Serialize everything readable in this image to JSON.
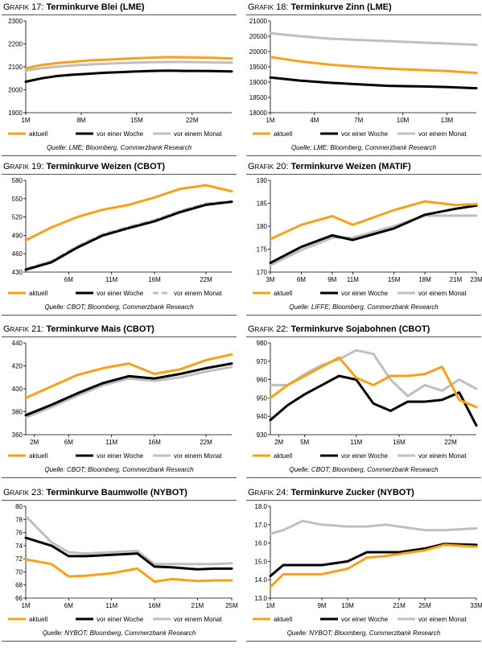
{
  "legend_labels": [
    "aktuell",
    "vor einer Woche",
    "vor einem Monat"
  ],
  "colors": {
    "aktuell": "#f7a11a",
    "vor_einer_woche": "#000000",
    "vor_einem_monat": "#bfbfbf"
  },
  "chart_data": [
    {
      "type": "line",
      "title_prefix": "Grafik 17:",
      "title": "Terminkurve Blei (LME)",
      "source": "Quelle: LME; Bloomberg, Commerzbank Research",
      "ylim": [
        1900,
        2300
      ],
      "yticks": [
        1900,
        2000,
        2100,
        2200,
        2300
      ],
      "xlim": [
        1,
        27
      ],
      "xticks": [
        1,
        8,
        15,
        22
      ],
      "xticklabels": [
        "1M",
        "8M",
        "15M",
        "22M"
      ],
      "series": [
        {
          "name": "aktuell",
          "x": [
            1,
            3,
            5,
            7,
            9,
            11,
            13,
            15,
            17,
            19,
            21,
            23,
            25,
            27
          ],
          "values": [
            2093,
            2108,
            2116,
            2122,
            2128,
            2131,
            2134,
            2138,
            2140,
            2142,
            2141,
            2140,
            2139,
            2136
          ]
        },
        {
          "name": "vor einer Woche",
          "x": [
            1,
            3,
            5,
            7,
            9,
            11,
            13,
            15,
            17,
            19,
            21,
            23,
            25,
            27
          ],
          "values": [
            2035,
            2050,
            2060,
            2066,
            2070,
            2074,
            2077,
            2080,
            2082,
            2083,
            2082,
            2082,
            2081,
            2080
          ]
        },
        {
          "name": "vor einem Monat",
          "x": [
            1,
            3,
            5,
            7,
            9,
            11,
            13,
            15,
            17,
            19,
            21,
            23,
            25,
            27
          ],
          "values": [
            2083,
            2094,
            2101,
            2106,
            2110,
            2113,
            2116,
            2118,
            2120,
            2121,
            2121,
            2120,
            2119,
            2118
          ]
        }
      ]
    },
    {
      "type": "line",
      "title_prefix": "Grafik 18:",
      "title": "Terminkurve Zinn (LME)",
      "source": "Quelle: LME; Bloomberg, Commerzbank Research",
      "ylim": [
        18000,
        21000
      ],
      "yticks": [
        18000,
        18500,
        19000,
        19500,
        20000,
        20500,
        21000
      ],
      "xlim": [
        1,
        15
      ],
      "xticks": [
        1,
        4,
        7,
        10,
        13
      ],
      "xticklabels": [
        "1M",
        "4M",
        "7M",
        "10M",
        "13M"
      ],
      "series": [
        {
          "name": "aktuell",
          "x": [
            1,
            3,
            5,
            7,
            9,
            11,
            13,
            15
          ],
          "values": [
            19820,
            19680,
            19570,
            19500,
            19440,
            19400,
            19360,
            19300
          ]
        },
        {
          "name": "vor einer Woche",
          "x": [
            1,
            3,
            5,
            7,
            9,
            11,
            13,
            15
          ],
          "values": [
            19150,
            19050,
            18980,
            18930,
            18880,
            18860,
            18840,
            18800
          ]
        },
        {
          "name": "vor einem Monat",
          "x": [
            1,
            3,
            5,
            7,
            9,
            11,
            13,
            15
          ],
          "values": [
            20600,
            20500,
            20420,
            20380,
            20340,
            20300,
            20260,
            20220
          ]
        }
      ]
    },
    {
      "type": "line",
      "title_prefix": "Grafik 19:",
      "title": "Terminkurve Weizen (CBOT)",
      "source": "Quelle: CBOT; Bloomberg, Commerzbank Research",
      "ylim": [
        430,
        580
      ],
      "yticks": [
        430,
        460,
        490,
        520,
        550,
        580
      ],
      "xlim": [
        1,
        25
      ],
      "xticks": [
        6,
        11,
        16,
        22
      ],
      "xticklabels": [
        "6M",
        "11M",
        "16M",
        "22M"
      ],
      "series": [
        {
          "name": "aktuell",
          "x": [
            1,
            4,
            7,
            10,
            13,
            16,
            19,
            22,
            25
          ],
          "values": [
            482,
            503,
            520,
            532,
            540,
            552,
            566,
            572,
            562
          ]
        },
        {
          "name": "vor einer Woche",
          "x": [
            1,
            4,
            7,
            10,
            13,
            16,
            19,
            22,
            25
          ],
          "values": [
            434,
            446,
            470,
            490,
            502,
            513,
            528,
            540,
            545
          ]
        },
        {
          "name": "vor einem Monat",
          "x": [
            1,
            4,
            7,
            10,
            13,
            16,
            19,
            22,
            25
          ],
          "values": [
            435,
            448,
            472,
            492,
            504,
            515,
            530,
            542,
            545
          ],
          "dashed": true
        }
      ]
    },
    {
      "type": "line",
      "title_prefix": "Grafik 20:",
      "title": "Terminkurve Weizen (MATIF)",
      "source": "Quelle: LIFFE; Bloomberg, Commerzbank Research",
      "ylim": [
        170,
        190
      ],
      "yticks": [
        170,
        175,
        180,
        185,
        190
      ],
      "xlim": [
        3,
        23
      ],
      "xticks": [
        3,
        6,
        9,
        11,
        15,
        18,
        21,
        23
      ],
      "xticklabels": [
        "3M",
        "6M",
        "9M",
        "11M",
        "15M",
        "18M",
        "21M",
        "23M"
      ],
      "series": [
        {
          "name": "aktuell",
          "x": [
            3,
            6,
            9,
            11,
            15,
            18,
            21,
            23
          ],
          "values": [
            177.2,
            180.3,
            182.2,
            180.3,
            183.5,
            185.4,
            184.6,
            184.8
          ]
        },
        {
          "name": "vor einer Woche",
          "x": [
            3,
            6,
            9,
            11,
            15,
            18,
            21,
            23
          ],
          "values": [
            172.0,
            175.5,
            178.0,
            177.0,
            179.5,
            182.5,
            183.8,
            184.5
          ]
        },
        {
          "name": "vor einem Monat",
          "x": [
            3,
            6,
            9,
            11,
            15,
            18,
            21,
            23
          ],
          "values": [
            171.5,
            174.8,
            177.5,
            177.5,
            180.0,
            182.3,
            182.3,
            182.3
          ]
        }
      ]
    },
    {
      "type": "line",
      "title_prefix": "Grafik 21:",
      "title": "Terminkurve Mais (CBOT)",
      "source": "Quelle: CBOT; Bloomberg, Commerzbank Research",
      "ylim": [
        360,
        440
      ],
      "yticks": [
        360,
        380,
        400,
        420,
        440
      ],
      "xlim": [
        1,
        25
      ],
      "xticks": [
        2,
        6,
        11,
        16,
        22
      ],
      "xticklabels": [
        "2M",
        "6M",
        "11M",
        "16M",
        "22M"
      ],
      "series": [
        {
          "name": "aktuell",
          "x": [
            1,
            4,
            7,
            10,
            13,
            16,
            19,
            22,
            25
          ],
          "values": [
            392,
            402,
            412,
            418,
            422,
            413,
            417,
            425,
            430
          ]
        },
        {
          "name": "vor einer Woche",
          "x": [
            1,
            4,
            7,
            10,
            13,
            16,
            19,
            22,
            25
          ],
          "values": [
            377,
            386,
            396,
            405,
            411,
            409,
            413,
            418,
            422
          ]
        },
        {
          "name": "vor einem Monat",
          "x": [
            1,
            4,
            7,
            10,
            13,
            16,
            19,
            22,
            25
          ],
          "values": [
            375,
            384,
            394,
            403,
            409,
            407,
            410,
            415,
            419
          ]
        }
      ]
    },
    {
      "type": "line",
      "title_prefix": "Grafik 22:",
      "title": "Terminkurve Sojabohnen (CBOT)",
      "source": "Quelle: CBOT; Bloomberg, Commerzbank Research",
      "ylim": [
        930,
        980
      ],
      "yticks": [
        930,
        940,
        950,
        960,
        970,
        980
      ],
      "xlim": [
        1,
        25
      ],
      "xticks": [
        2,
        5,
        11,
        16,
        22
      ],
      "xticklabels": [
        "2M",
        "5M",
        "11M",
        "16M",
        "22M"
      ],
      "series": [
        {
          "name": "aktuell",
          "x": [
            1,
            3,
            5,
            7,
            9,
            11,
            13,
            15,
            17,
            19,
            21,
            23,
            25
          ],
          "values": [
            950,
            957,
            962,
            967,
            972,
            961,
            957,
            962,
            962,
            963,
            967,
            949,
            945
          ]
        },
        {
          "name": "vor einer Woche",
          "x": [
            1,
            3,
            5,
            7,
            9,
            11,
            13,
            15,
            17,
            19,
            21,
            23,
            25
          ],
          "values": [
            938,
            946,
            952,
            957,
            962,
            960,
            947,
            943,
            948,
            948,
            949,
            953,
            935
          ]
        },
        {
          "name": "vor einem Monat",
          "x": [
            1,
            3,
            5,
            7,
            9,
            11,
            13,
            15,
            17,
            19,
            21,
            23,
            25
          ],
          "values": [
            957,
            957,
            963,
            968,
            971,
            976,
            974,
            960,
            951,
            957,
            954,
            960,
            955
          ]
        }
      ]
    },
    {
      "type": "line",
      "title_prefix": "Grafik 23:",
      "title": "Terminkurve Baumwolle (NYBOT)",
      "source": "Quelle: NYBOT; Bloomberg, Commerzbank Research",
      "ylim": [
        66,
        80
      ],
      "yticks": [
        66,
        68,
        70,
        72,
        74,
        76,
        78,
        80
      ],
      "xlim": [
        1,
        25
      ],
      "xticks": [
        1,
        6,
        11,
        16,
        21,
        25
      ],
      "xticklabels": [
        "1M",
        "6M",
        "11M",
        "16M",
        "21M",
        "25M"
      ],
      "series": [
        {
          "name": "aktuell",
          "x": [
            1,
            4,
            6,
            8,
            11,
            14,
            16,
            18,
            21,
            23,
            25
          ],
          "values": [
            71.9,
            71.2,
            69.3,
            69.4,
            69.8,
            70.5,
            68.5,
            68.9,
            68.6,
            68.7,
            68.7
          ]
        },
        {
          "name": "vor einer Woche",
          "x": [
            1,
            4,
            6,
            8,
            11,
            14,
            16,
            18,
            21,
            23,
            25
          ],
          "values": [
            75.2,
            74.0,
            72.4,
            72.4,
            72.6,
            72.8,
            70.8,
            70.7,
            70.4,
            70.5,
            70.5
          ]
        },
        {
          "name": "vor einem Monat",
          "x": [
            1,
            4,
            6,
            8,
            11,
            14,
            16,
            18,
            21,
            23,
            25
          ],
          "values": [
            78.5,
            74.5,
            73.0,
            72.8,
            73.0,
            73.2,
            71.2,
            71.2,
            71.2,
            71.2,
            71.3
          ]
        }
      ]
    },
    {
      "type": "line",
      "title_prefix": "Grafik 24:",
      "title": "Terminkurve Zucker (NYBOT)",
      "source": "Quelle: NYBOT; Bloomberg, Commerzbank Research",
      "ylim": [
        13,
        18
      ],
      "yticks": [
        13.0,
        14.0,
        15.0,
        16.0,
        17.0,
        18.0
      ],
      "ytickformat": "1dp",
      "xlim": [
        1,
        33
      ],
      "xticks": [
        1,
        9,
        13,
        21,
        25,
        33
      ],
      "xticklabels": [
        "1M",
        "9M",
        "13M",
        "21M",
        "25M",
        "33M"
      ],
      "series": [
        {
          "name": "aktuell",
          "x": [
            1,
            3,
            6,
            9,
            13,
            16,
            19,
            21,
            25,
            28,
            33
          ],
          "values": [
            13.6,
            14.3,
            14.3,
            14.3,
            14.6,
            15.2,
            15.3,
            15.4,
            15.6,
            15.9,
            15.8
          ]
        },
        {
          "name": "vor einer Woche",
          "x": [
            1,
            3,
            6,
            9,
            13,
            16,
            19,
            21,
            25,
            28,
            33
          ],
          "values": [
            14.2,
            14.8,
            14.8,
            14.8,
            15.0,
            15.5,
            15.5,
            15.5,
            15.7,
            15.95,
            15.9
          ]
        },
        {
          "name": "vor einem Monat",
          "x": [
            1,
            3,
            6,
            9,
            13,
            16,
            19,
            21,
            25,
            28,
            33
          ],
          "values": [
            16.5,
            16.7,
            17.2,
            17.0,
            16.9,
            16.9,
            17.0,
            16.9,
            16.7,
            16.7,
            16.8
          ]
        }
      ]
    }
  ]
}
